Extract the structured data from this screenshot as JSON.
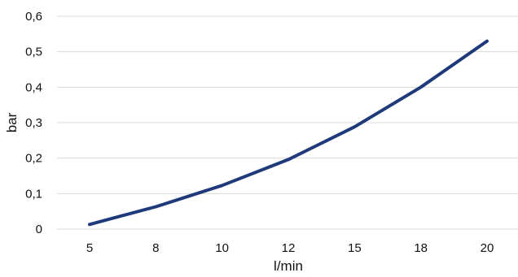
{
  "chart_data": {
    "type": "line",
    "title": "",
    "xlabel": "l/min",
    "ylabel": "bar",
    "categories": [
      "5",
      "8",
      "10",
      "12",
      "15",
      "18",
      "20"
    ],
    "series": [
      {
        "values": [
          0.013,
          0.063,
          0.123,
          0.196,
          0.288,
          0.4,
          0.53
        ],
        "color": "#1f3a7a"
      }
    ],
    "yticks": [
      "0",
      "0,1",
      "0,2",
      "0,3",
      "0,4",
      "0,5",
      "0,6"
    ],
    "ylim": [
      0,
      0.6
    ],
    "grid": true,
    "legend": "none"
  }
}
